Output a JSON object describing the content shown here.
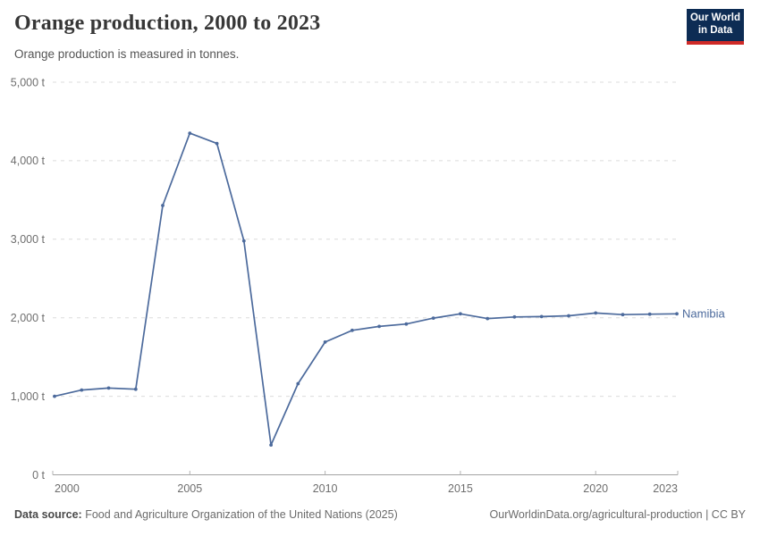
{
  "header": {
    "title": "Orange production, 2000 to 2023",
    "subtitle": "Orange production is measured in tonnes.",
    "logo_line1": "Our World",
    "logo_line2": "in Data"
  },
  "chart_data": {
    "type": "line",
    "title": "Orange production, 2000 to 2023",
    "unit": "tonnes",
    "xlabel": "",
    "ylabel": "",
    "x": [
      2000,
      2001,
      2002,
      2003,
      2004,
      2005,
      2006,
      2007,
      2008,
      2009,
      2010,
      2011,
      2012,
      2013,
      2014,
      2015,
      2016,
      2017,
      2018,
      2019,
      2020,
      2021,
      2022,
      2023
    ],
    "series": [
      {
        "name": "Namibia",
        "color": "#4C6A9C",
        "values": [
          1000,
          1080,
          1105,
          1090,
          3430,
          4350,
          4220,
          2980,
          380,
          1160,
          1690,
          1840,
          1890,
          1920,
          1995,
          2050,
          1990,
          2010,
          2015,
          2025,
          2060,
          2040,
          2045,
          2050
        ]
      }
    ],
    "xlim": [
      2000,
      2023
    ],
    "ylim": [
      0,
      5000
    ],
    "xticks": [
      2000,
      2005,
      2010,
      2015,
      2020,
      2023
    ],
    "yticks": [
      0,
      1000,
      2000,
      3000,
      4000,
      5000
    ],
    "ytick_labels": [
      "0 t",
      "1,000 t",
      "2,000 t",
      "3,000 t",
      "4,000 t",
      "5,000 t"
    ],
    "grid": "horizontal-dashed",
    "legend": "line-end-label"
  },
  "footer": {
    "source_label": "Data source:",
    "source_text": "Food and Agriculture Organization of the United Nations (2025)",
    "url": "OurWorldinData.org/agricultural-production",
    "separator": " | ",
    "license": "CC BY"
  },
  "colors": {
    "line": "#4C6A9C",
    "grid": "#dcdcdc",
    "axis": "#a3a3a3",
    "tick": "#b3b3b3",
    "tick_text": "#6e6e6e",
    "logo_bg": "#0d2c54",
    "logo_accent": "#cf2a27"
  }
}
